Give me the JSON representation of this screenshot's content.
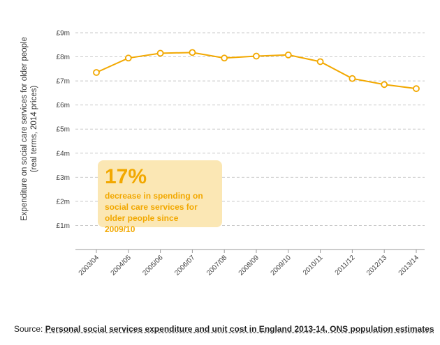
{
  "chart_data": {
    "type": "line",
    "categories": [
      "2003/04",
      "2004/05",
      "2005/06",
      "2006/07",
      "2007/08",
      "2008/09",
      "2009/10",
      "2010/11",
      "2011/12",
      "2012/13",
      "2013/14"
    ],
    "values": [
      7.35,
      7.95,
      8.15,
      8.18,
      7.95,
      8.03,
      8.08,
      7.8,
      7.1,
      6.85,
      6.68
    ],
    "ylabel_line1": "Expenditure on social care services for older people",
    "ylabel_line2": "(real terms, 2014 prices)",
    "ylim": [
      0,
      9
    ],
    "yticks": [
      "£1m",
      "£2m",
      "£3m",
      "£4m",
      "£5m",
      "£6m",
      "£7m",
      "£8m",
      "£9m"
    ],
    "grid": "horizontal dashed",
    "line_color": "#f2a800"
  },
  "callout": {
    "big": "17%",
    "text": "decrease in spending on social care services for older people since 2009/10",
    "background": "#fbe7b4",
    "color": "#f2a800"
  },
  "source": {
    "prefix": "Source: ",
    "link": "Personal social services expenditure and unit cost in England 2013-14, ONS population estimates"
  }
}
